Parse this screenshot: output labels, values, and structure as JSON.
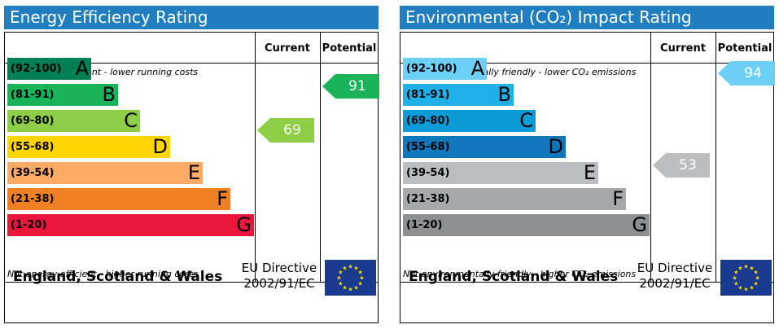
{
  "chart_data": [
    {
      "type": "bar",
      "title": "Energy Efficiency Rating",
      "columns": [
        "Current",
        "Potential"
      ],
      "top_note": "Very energy efficient - lower running costs",
      "bottom_note": "Not energy efficient - higher running costs",
      "bands": [
        {
          "range": "(92-100)",
          "letter": "A",
          "color": "#008054"
        },
        {
          "range": "(81-91)",
          "letter": "B",
          "color": "#19b459"
        },
        {
          "range": "(69-80)",
          "letter": "C",
          "color": "#8dce46"
        },
        {
          "range": "(55-68)",
          "letter": "D",
          "color": "#ffd500"
        },
        {
          "range": "(39-54)",
          "letter": "E",
          "color": "#fcaa65"
        },
        {
          "range": "(21-38)",
          "letter": "F",
          "color": "#ef8023"
        },
        {
          "range": "(1-20)",
          "letter": "G",
          "color": "#e9153b"
        }
      ],
      "current": {
        "value": 69,
        "color": "#8dce46"
      },
      "potential": {
        "value": 91,
        "color": "#19b459"
      },
      "footer_country": "England, Scotland & Wales",
      "footer_directive_line1": "EU Directive",
      "footer_directive_line2": "2002/91/EC"
    },
    {
      "type": "bar",
      "title": "Environmental (CO₂) Impact Rating",
      "columns": [
        "Current",
        "Potential"
      ],
      "top_note": "Very environmentally friendly - lower CO₂ emissions",
      "bottom_note": "Not environmentally friendly - higher CO₂ emissions",
      "bands": [
        {
          "range": "(92-100)",
          "letter": "A",
          "color": "#6ccff6"
        },
        {
          "range": "(81-91)",
          "letter": "B",
          "color": "#1fb0e8"
        },
        {
          "range": "(69-80)",
          "letter": "C",
          "color": "#0c9bd9"
        },
        {
          "range": "(55-68)",
          "letter": "D",
          "color": "#1077bc"
        },
        {
          "range": "(39-54)",
          "letter": "E",
          "color": "#bbbdbf"
        },
        {
          "range": "(21-38)",
          "letter": "F",
          "color": "#a6a8ab"
        },
        {
          "range": "(1-20)",
          "letter": "G",
          "color": "#8d8f92"
        }
      ],
      "current": {
        "value": 53,
        "color": "#bbbdbf"
      },
      "potential": {
        "value": 94,
        "color": "#6ccff6"
      },
      "footer_country": "England, Scotland & Wales",
      "footer_directive_line1": "EU Directive",
      "footer_directive_line2": "2002/91/EC"
    }
  ]
}
